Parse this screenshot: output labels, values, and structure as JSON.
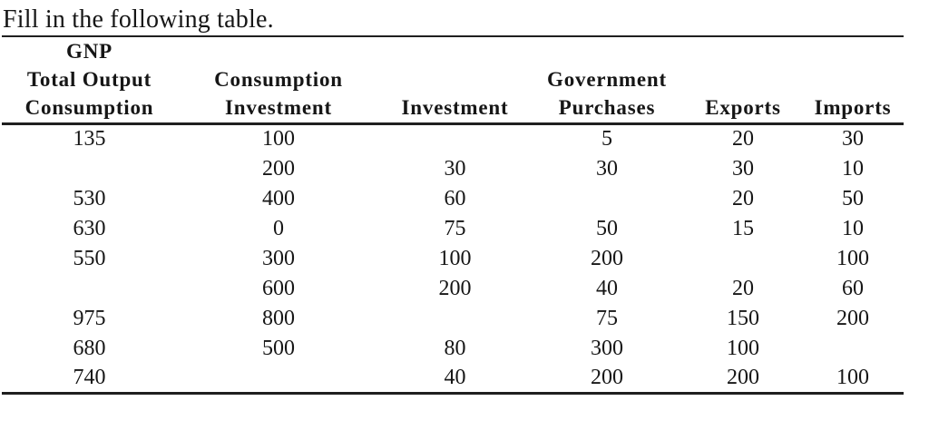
{
  "page": {
    "title": "Fill in the following table."
  },
  "table": {
    "header_columns": [
      {
        "lines": [
          "GNP",
          "Total Output",
          "Consumption"
        ]
      },
      {
        "lines": [
          "Consumption",
          "Investment"
        ]
      },
      {
        "lines": [
          "Investment"
        ]
      },
      {
        "lines": [
          "Government",
          "Purchases"
        ]
      },
      {
        "lines": [
          "Exports"
        ]
      },
      {
        "lines": [
          "Imports"
        ]
      }
    ],
    "rows": [
      [
        "135",
        "100",
        "",
        "5",
        "20",
        "30"
      ],
      [
        "",
        "200",
        "30",
        "30",
        "30",
        "10"
      ],
      [
        "530",
        "400",
        "60",
        "",
        "20",
        "50"
      ],
      [
        "630",
        "0",
        "75",
        "50",
        "15",
        "10"
      ],
      [
        "550",
        "300",
        "100",
        "200",
        "",
        "100"
      ],
      [
        "",
        "600",
        "200",
        "40",
        "20",
        "60"
      ],
      [
        "975",
        "800",
        "",
        "75",
        "150",
        "200"
      ],
      [
        "680",
        "500",
        "80",
        "300",
        "100",
        ""
      ],
      [
        "740",
        "",
        "40",
        "200",
        "200",
        "100"
      ]
    ]
  },
  "colors": {
    "background": "#ffffff",
    "text": "#161616",
    "rule": "#1f1f1f"
  }
}
